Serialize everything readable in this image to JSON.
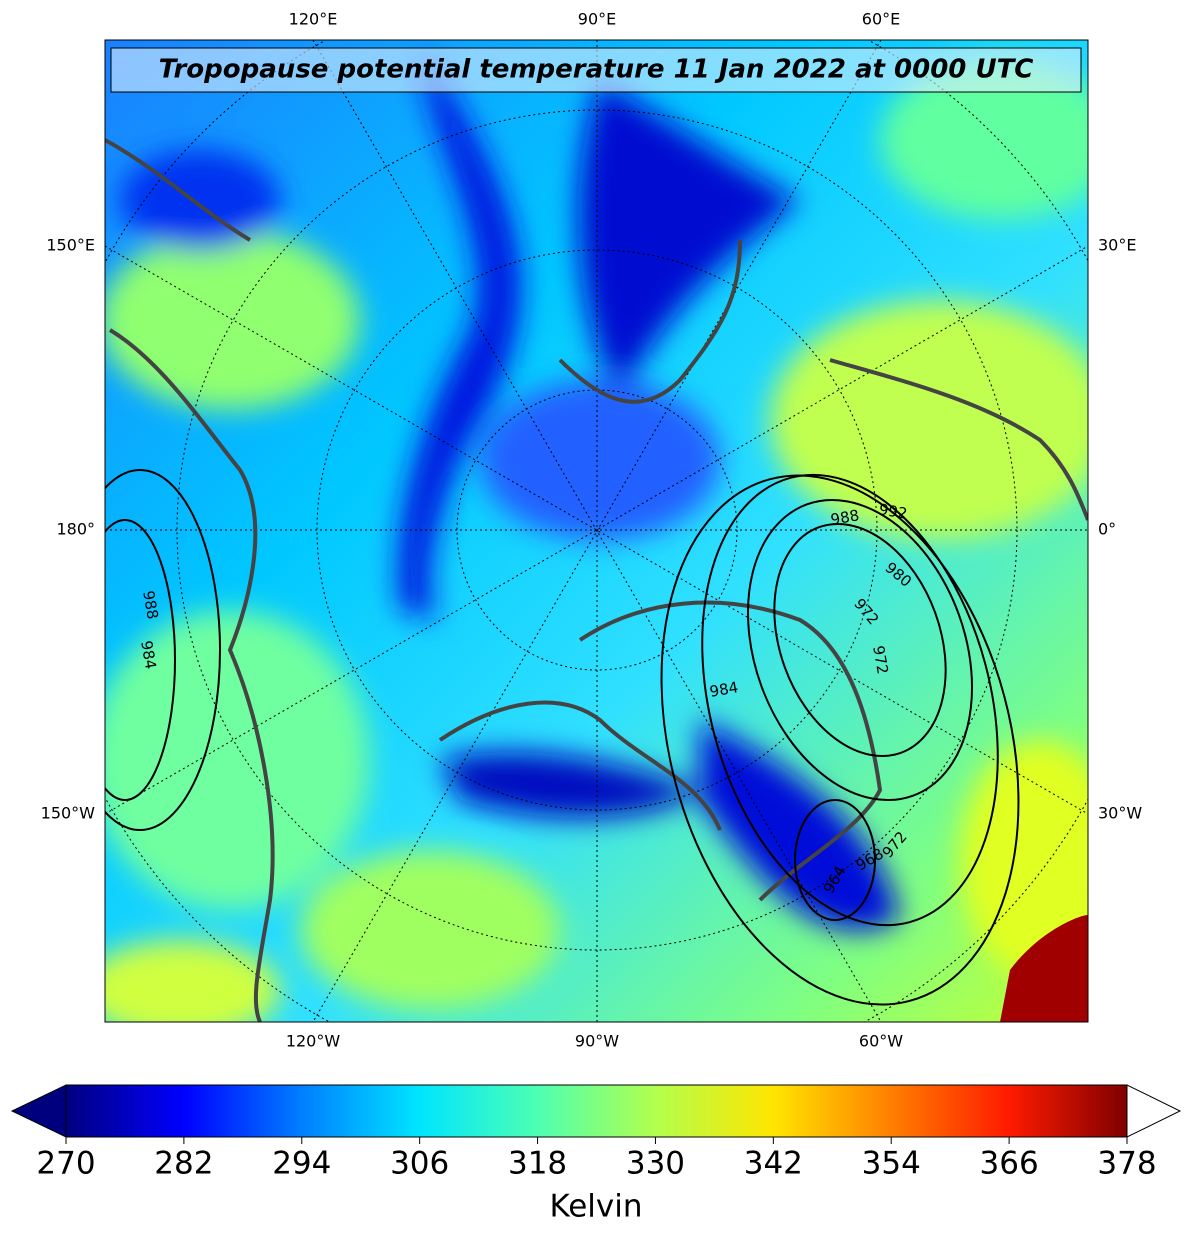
{
  "map": {
    "title": "Tropopause potential temperature 11 Jan 2022 at 0000 UTC",
    "labels": {
      "top": [
        "120°E",
        "90°E",
        "60°E"
      ],
      "bottom": [
        "120°W",
        "90°W",
        "60°W"
      ],
      "left": [
        "150°E",
        "180°",
        "150°W"
      ],
      "right": [
        "30°E",
        "0°",
        "30°W"
      ]
    },
    "pressure_labels": [
      "988",
      "992",
      "980",
      "972",
      "972",
      "984",
      "988",
      "984",
      "968",
      "964",
      "972"
    ]
  },
  "colorbar": {
    "label": "Kelvin",
    "lim": [
      270,
      378
    ],
    "ticks": [
      270,
      282,
      294,
      306,
      318,
      330,
      342,
      354,
      366,
      378
    ],
    "colors": [
      "#00007f",
      "#0000ff",
      "#007fff",
      "#00e5ff",
      "#4dffb2",
      "#b2ff4d",
      "#ffe500",
      "#ff7f00",
      "#ff1a00",
      "#7f0000"
    ]
  }
}
